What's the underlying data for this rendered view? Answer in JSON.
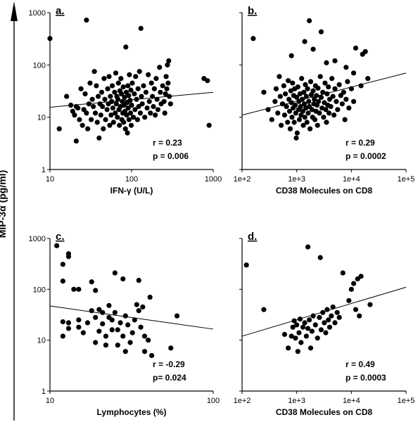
{
  "figure": {
    "ylabel": "MIP-3α (pg/ml)"
  },
  "chart_data": [
    {
      "type": "scatter",
      "panel_label": "a.",
      "xlabel": "IFN-γ (U/L)",
      "xscale": "log",
      "yscale": "log",
      "xlim": [
        10,
        1000
      ],
      "ylim": [
        1,
        1000
      ],
      "xticks": [
        "10",
        "100",
        "1000"
      ],
      "yticks": [
        "1",
        "10",
        "100",
        "1000"
      ],
      "stats": [
        "r = 0.23",
        "p = 0.006"
      ],
      "trendline": {
        "x": [
          10,
          1000
        ],
        "y": [
          15.5,
          30
        ]
      },
      "points": [
        [
          10,
          320
        ],
        [
          28,
          720
        ],
        [
          130,
          500
        ],
        [
          85,
          220
        ],
        [
          275,
          100
        ],
        [
          285,
          120
        ],
        [
          850,
          50
        ],
        [
          770,
          55
        ],
        [
          890,
          7
        ],
        [
          13,
          6
        ],
        [
          16,
          25
        ],
        [
          18,
          17
        ],
        [
          19,
          13
        ],
        [
          20,
          11
        ],
        [
          21,
          16
        ],
        [
          21,
          3.5
        ],
        [
          22,
          15
        ],
        [
          23,
          9
        ],
        [
          24,
          35
        ],
        [
          25,
          7
        ],
        [
          26,
          14
        ],
        [
          27,
          28
        ],
        [
          28,
          12
        ],
        [
          29,
          6
        ],
        [
          30,
          18
        ],
        [
          31,
          45
        ],
        [
          32,
          9
        ],
        [
          33,
          22
        ],
        [
          34,
          16
        ],
        [
          35,
          75
        ],
        [
          36,
          12
        ],
        [
          37,
          40
        ],
        [
          38,
          8
        ],
        [
          39,
          25
        ],
        [
          40,
          4
        ],
        [
          41,
          18
        ],
        [
          42,
          11
        ],
        [
          43,
          30
        ],
        [
          44,
          16
        ],
        [
          45,
          6
        ],
        [
          46,
          55
        ],
        [
          47,
          22
        ],
        [
          48,
          9
        ],
        [
          50,
          14
        ],
        [
          51,
          35
        ],
        [
          52,
          18
        ],
        [
          53,
          60
        ],
        [
          54,
          7
        ],
        [
          55,
          25
        ],
        [
          56,
          11
        ],
        [
          57,
          20
        ],
        [
          58,
          40
        ],
        [
          59,
          15
        ],
        [
          60,
          8
        ],
        [
          62,
          30
        ],
        [
          63,
          12
        ],
        [
          64,
          70
        ],
        [
          65,
          18
        ],
        [
          66,
          25
        ],
        [
          67,
          10
        ],
        [
          68,
          22
        ],
        [
          69,
          45
        ],
        [
          70,
          14
        ],
        [
          71,
          7
        ],
        [
          72,
          32
        ],
        [
          73,
          16
        ],
        [
          74,
          55
        ],
        [
          75,
          28
        ],
        [
          76,
          9
        ],
        [
          77,
          20
        ],
        [
          78,
          12
        ],
        [
          79,
          38
        ],
        [
          80,
          8
        ],
        [
          81,
          17
        ],
        [
          82,
          24
        ],
        [
          83,
          13
        ],
        [
          84,
          6
        ],
        [
          86,
          30
        ],
        [
          87,
          11
        ],
        [
          88,
          19
        ],
        [
          89,
          5
        ],
        [
          90,
          40
        ],
        [
          91,
          15
        ],
        [
          92,
          26
        ],
        [
          93,
          9
        ],
        [
          94,
          65
        ],
        [
          96,
          21
        ],
        [
          97,
          12
        ],
        [
          98,
          33
        ],
        [
          99,
          7
        ],
        [
          100,
          17
        ],
        [
          102,
          45
        ],
        [
          105,
          10
        ],
        [
          108,
          28
        ],
        [
          110,
          14
        ],
        [
          112,
          60
        ],
        [
          115,
          22
        ],
        [
          118,
          9
        ],
        [
          120,
          35
        ],
        [
          122,
          16
        ],
        [
          125,
          75
        ],
        [
          128,
          12
        ],
        [
          132,
          25
        ],
        [
          135,
          18
        ],
        [
          140,
          40
        ],
        [
          145,
          10
        ],
        [
          150,
          30
        ],
        [
          155,
          15
        ],
        [
          160,
          65
        ],
        [
          165,
          20
        ],
        [
          170,
          12
        ],
        [
          175,
          45
        ],
        [
          180,
          25
        ],
        [
          185,
          16
        ],
        [
          190,
          35
        ],
        [
          195,
          11
        ],
        [
          200,
          55
        ],
        [
          205,
          22
        ],
        [
          210,
          14
        ],
        [
          220,
          90
        ],
        [
          225,
          30
        ],
        [
          230,
          18
        ],
        [
          240,
          40
        ],
        [
          250,
          20
        ],
        [
          255,
          12
        ],
        [
          260,
          28
        ],
        [
          265,
          60
        ],
        [
          270,
          35
        ],
        [
          280,
          45
        ],
        [
          290,
          25
        ],
        [
          300,
          18
        ]
      ]
    },
    {
      "type": "scatter",
      "panel_label": "b.",
      "xlabel": "CD38 Molecules on CD8",
      "xscale": "log",
      "yscale": "log",
      "xlim": [
        100,
        100000
      ],
      "ylim": [
        1,
        1000
      ],
      "xticks": [
        "1e+2",
        "1e+3",
        "1e+4",
        "1e+5"
      ],
      "stats": [
        "r = 0.29",
        "p = 0.0002"
      ],
      "trendline": {
        "x": [
          100,
          100000
        ],
        "y": [
          11,
          70
        ]
      },
      "points": [
        [
          160,
          320
        ],
        [
          1700,
          700
        ],
        [
          2800,
          430
        ],
        [
          12000,
          210
        ],
        [
          16000,
          160
        ],
        [
          18000,
          180
        ],
        [
          20000,
          55
        ],
        [
          15000,
          40
        ],
        [
          1400,
          280
        ],
        [
          800,
          150
        ],
        [
          2000,
          200
        ],
        [
          5000,
          120
        ],
        [
          8000,
          90
        ],
        [
          11000,
          70
        ],
        [
          3500,
          110
        ],
        [
          250,
          30
        ],
        [
          300,
          14
        ],
        [
          350,
          9
        ],
        [
          400,
          20
        ],
        [
          420,
          35
        ],
        [
          450,
          12
        ],
        [
          480,
          60
        ],
        [
          500,
          25
        ],
        [
          520,
          7
        ],
        [
          550,
          18
        ],
        [
          580,
          40
        ],
        [
          600,
          11
        ],
        [
          620,
          28
        ],
        [
          650,
          16
        ],
        [
          680,
          8
        ],
        [
          700,
          50
        ],
        [
          720,
          22
        ],
        [
          740,
          13
        ],
        [
          760,
          6
        ],
        [
          780,
          32
        ],
        [
          800,
          19
        ],
        [
          820,
          10
        ],
        [
          840,
          45
        ],
        [
          860,
          15
        ],
        [
          880,
          26
        ],
        [
          900,
          8
        ],
        [
          920,
          35
        ],
        [
          940,
          17
        ],
        [
          960,
          12
        ],
        [
          980,
          4
        ],
        [
          1000,
          24
        ],
        [
          1020,
          5
        ],
        [
          1050,
          38
        ],
        [
          1080,
          14
        ],
        [
          1100,
          20
        ],
        [
          1120,
          9
        ],
        [
          1150,
          28
        ],
        [
          1180,
          16
        ],
        [
          1200,
          11
        ],
        [
          1230,
          55
        ],
        [
          1260,
          22
        ],
        [
          1290,
          13
        ],
        [
          1320,
          7
        ],
        [
          1350,
          30
        ],
        [
          1380,
          18
        ],
        [
          1410,
          10
        ],
        [
          1440,
          42
        ],
        [
          1470,
          15
        ],
        [
          1500,
          25
        ],
        [
          1540,
          8
        ],
        [
          1580,
          35
        ],
        [
          1620,
          12
        ],
        [
          1660,
          20
        ],
        [
          1700,
          16
        ],
        [
          1750,
          6
        ],
        [
          1800,
          48
        ],
        [
          1850,
          27
        ],
        [
          1900,
          14
        ],
        [
          1950,
          10
        ],
        [
          2000,
          32
        ],
        [
          2050,
          18
        ],
        [
          2100,
          22
        ],
        [
          2150,
          9
        ],
        [
          2200,
          40
        ],
        [
          2250,
          13
        ],
        [
          2300,
          26
        ],
        [
          2350,
          17
        ],
        [
          2400,
          7
        ],
        [
          2450,
          36
        ],
        [
          2500,
          20
        ],
        [
          2600,
          12
        ],
        [
          2700,
          60
        ],
        [
          2800,
          24
        ],
        [
          2900,
          15
        ],
        [
          3000,
          30
        ],
        [
          3100,
          10
        ],
        [
          3200,
          19
        ],
        [
          3300,
          45
        ],
        [
          3400,
          14
        ],
        [
          3500,
          8
        ],
        [
          3600,
          28
        ],
        [
          3700,
          17
        ],
        [
          3800,
          38
        ],
        [
          3900,
          12
        ],
        [
          4000,
          22
        ],
        [
          4200,
          16
        ],
        [
          4400,
          55
        ],
        [
          4600,
          25
        ],
        [
          4800,
          11
        ],
        [
          5000,
          35
        ],
        [
          5300,
          20
        ],
        [
          5600,
          14
        ],
        [
          6000,
          42
        ],
        [
          6400,
          26
        ],
        [
          6800,
          18
        ],
        [
          7200,
          30
        ],
        [
          7600,
          9
        ],
        [
          8000,
          22
        ],
        [
          8500,
          48
        ],
        [
          9000,
          15
        ],
        [
          10000,
          35
        ],
        [
          11000,
          20
        ]
      ]
    },
    {
      "type": "scatter",
      "panel_label": "c.",
      "xlabel": "Lymphocytes (%)",
      "xscale": "log",
      "yscale": "log",
      "xlim": [
        10,
        100
      ],
      "ylim": [
        1,
        1000
      ],
      "xticks": [
        "10",
        "100"
      ],
      "yticks": [
        "1",
        "10",
        "100",
        "1000"
      ],
      "stats": [
        "r = -0.29",
        "p= 0.024"
      ],
      "trendline": {
        "x": [
          10,
          100
        ],
        "y": [
          47,
          16.5
        ]
      },
      "points": [
        [
          11,
          720
        ],
        [
          12,
          310
        ],
        [
          13,
          500
        ],
        [
          13,
          440
        ],
        [
          12,
          145
        ],
        [
          12,
          23
        ],
        [
          12,
          12
        ],
        [
          13,
          17
        ],
        [
          13,
          22
        ],
        [
          14,
          100
        ],
        [
          15,
          100
        ],
        [
          15,
          25
        ],
        [
          15,
          18
        ],
        [
          16,
          14
        ],
        [
          17,
          22
        ],
        [
          18,
          38
        ],
        [
          18,
          140
        ],
        [
          19,
          95
        ],
        [
          19,
          28
        ],
        [
          19,
          9
        ],
        [
          20,
          40
        ],
        [
          20,
          15
        ],
        [
          21,
          35
        ],
        [
          21,
          21
        ],
        [
          22,
          12
        ],
        [
          22,
          8
        ],
        [
          23,
          28
        ],
        [
          23,
          48
        ],
        [
          24,
          16
        ],
        [
          24,
          25
        ],
        [
          25,
          210
        ],
        [
          25,
          35
        ],
        [
          26,
          8
        ],
        [
          26,
          16
        ],
        [
          27,
          22
        ],
        [
          28,
          160
        ],
        [
          28,
          12
        ],
        [
          29,
          30
        ],
        [
          29,
          6
        ],
        [
          30,
          20
        ],
        [
          31,
          9
        ],
        [
          32,
          14
        ],
        [
          33,
          25
        ],
        [
          34,
          50
        ],
        [
          35,
          38
        ],
        [
          35,
          150
        ],
        [
          36,
          18
        ],
        [
          37,
          45
        ],
        [
          38,
          12
        ],
        [
          38,
          6
        ],
        [
          40,
          10
        ],
        [
          41,
          70
        ],
        [
          42,
          5
        ],
        [
          55,
          7
        ],
        [
          60,
          30
        ]
      ]
    },
    {
      "type": "scatter",
      "panel_label": "d.",
      "xlabel": "CD38 Molecules on CD8",
      "xscale": "log",
      "yscale": "log",
      "xlim": [
        100,
        100000
      ],
      "ylim": [
        1,
        1000
      ],
      "xticks": [
        "1e+2",
        "1e+3",
        "1e+4",
        "1e+5"
      ],
      "stats": [
        "r = 0.49",
        "p = 0.0003"
      ],
      "trendline": {
        "x": [
          100,
          100000
        ],
        "y": [
          12,
          110
        ]
      },
      "points": [
        [
          120,
          300
        ],
        [
          250,
          40
        ],
        [
          1600,
          680
        ],
        [
          2700,
          420
        ],
        [
          7000,
          210
        ],
        [
          11000,
          130
        ],
        [
          13000,
          160
        ],
        [
          15000,
          180
        ],
        [
          9000,
          60
        ],
        [
          10000,
          100
        ],
        [
          12000,
          40
        ],
        [
          14000,
          30
        ],
        [
          22000,
          50
        ],
        [
          600,
          13
        ],
        [
          700,
          7
        ],
        [
          800,
          12
        ],
        [
          850,
          18
        ],
        [
          900,
          24
        ],
        [
          950,
          11
        ],
        [
          1000,
          20
        ],
        [
          1050,
          6
        ],
        [
          1100,
          14
        ],
        [
          1150,
          26
        ],
        [
          1200,
          9
        ],
        [
          1300,
          18
        ],
        [
          1400,
          22
        ],
        [
          1500,
          12
        ],
        [
          1600,
          17
        ],
        [
          1700,
          25
        ],
        [
          1800,
          7
        ],
        [
          1900,
          15
        ],
        [
          2000,
          30
        ],
        [
          2200,
          20
        ],
        [
          2400,
          11
        ],
        [
          2600,
          28
        ],
        [
          2800,
          16
        ],
        [
          3000,
          35
        ],
        [
          3200,
          22
        ],
        [
          3400,
          14
        ],
        [
          3600,
          40
        ],
        [
          3800,
          25
        ],
        [
          4000,
          18
        ],
        [
          4300,
          30
        ],
        [
          4600,
          45
        ],
        [
          5000,
          22
        ],
        [
          5500,
          35
        ],
        [
          6000,
          28
        ]
      ]
    }
  ]
}
